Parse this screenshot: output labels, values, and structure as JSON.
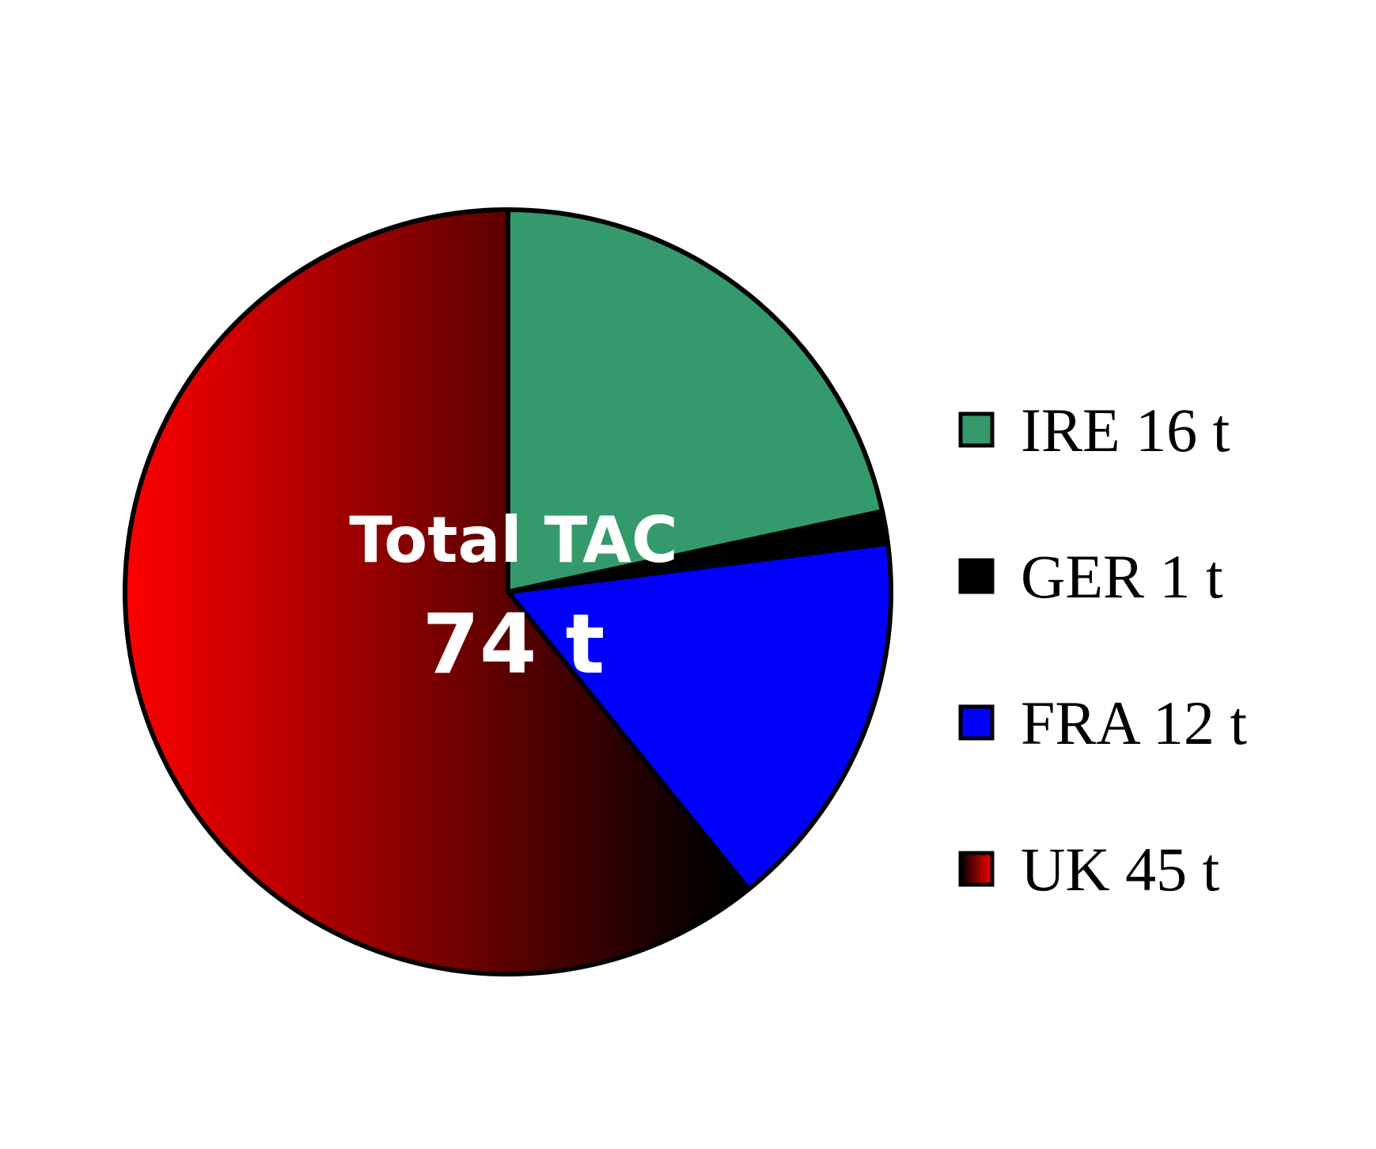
{
  "chart_data": {
    "type": "pie",
    "center_label": {
      "line1": "Total TAC",
      "line2": "74 t"
    },
    "start_angle_deg": 0,
    "direction": "clockwise",
    "legend_position": "right",
    "slices": [
      {
        "name": "IRE",
        "value": 16,
        "label": "IRE 16 t",
        "color": "#359A6B",
        "gradient": null
      },
      {
        "name": "GER",
        "value": 1,
        "label": "GER 1 t",
        "color": "#000000",
        "gradient": null
      },
      {
        "name": "FRA",
        "value": 12,
        "label": "FRA 12 t",
        "color": "#0000FF",
        "gradient": null
      },
      {
        "name": "UK",
        "value": 45,
        "label": "UK 45 t",
        "color": "#E00000",
        "gradient": [
          "#FF0000",
          "#000000"
        ]
      }
    ]
  }
}
